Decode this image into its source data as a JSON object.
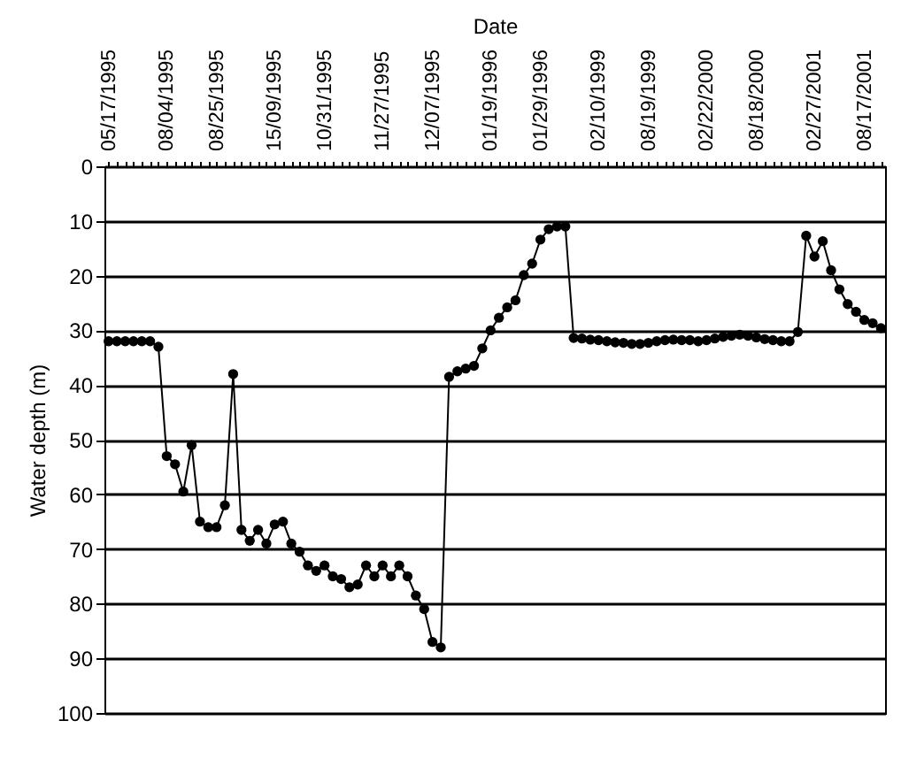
{
  "chart_data": {
    "type": "line",
    "xlabel": "Date",
    "ylabel": "Water depth (m)",
    "categories": [
      "05/17/1995",
      null,
      null,
      null,
      null,
      null,
      null,
      "08/04/1995",
      null,
      null,
      null,
      null,
      null,
      "08/25/1995",
      null,
      null,
      null,
      null,
      null,
      null,
      "15/09/1995",
      null,
      null,
      null,
      null,
      null,
      "10/31/1995",
      null,
      null,
      null,
      null,
      null,
      null,
      "11/27/1995",
      null,
      null,
      null,
      null,
      null,
      "12/07/1995",
      null,
      null,
      null,
      null,
      null,
      null,
      "01/19/1996",
      null,
      null,
      null,
      null,
      null,
      "01/29/1996",
      null,
      null,
      null,
      null,
      null,
      null,
      "02/10/1999",
      null,
      null,
      null,
      null,
      null,
      "08/19/1999",
      null,
      null,
      null,
      null,
      null,
      null,
      "02/22/2000",
      null,
      null,
      null,
      null,
      null,
      "08/18/2000",
      null,
      null,
      null,
      null,
      null,
      null,
      "02/27/2001",
      null,
      null,
      null,
      null,
      null,
      "08/17/2001",
      null,
      null
    ],
    "series": [
      {
        "color": "#000000",
        "values": [
          32,
          32,
          32,
          32,
          32,
          32,
          33,
          53,
          54.5,
          59.5,
          51,
          65,
          66,
          66,
          62,
          38,
          66.5,
          68.5,
          66.5,
          69,
          65.5,
          65,
          69,
          70.5,
          73,
          74,
          73,
          75,
          75.5,
          77,
          76.5,
          73,
          75,
          73,
          75,
          73,
          75,
          78.5,
          81,
          87,
          88,
          38.5,
          37.5,
          37,
          36.5,
          33.3,
          30,
          27.7,
          25.8,
          24.5,
          19.9,
          17.8,
          13.4,
          11.5,
          11,
          11,
          31.4,
          31.5,
          31.7,
          31.8,
          32,
          32.2,
          32.3,
          32.5,
          32.5,
          32.3,
          32,
          31.8,
          31.7,
          31.8,
          31.8,
          32,
          31.8,
          31.5,
          31.2,
          31,
          30.8,
          31,
          31.3,
          31.6,
          31.8,
          32,
          32,
          30.3,
          12.7,
          16.5,
          13.7,
          19,
          22.5,
          25.2,
          26.6,
          28.1,
          28.7,
          29.6
        ]
      }
    ],
    "ylim": [
      100,
      0
    ],
    "yticks": [
      0,
      10,
      20,
      30,
      40,
      50,
      60,
      70,
      80,
      90,
      100
    ],
    "grid": "y",
    "marker": "circle",
    "line_style": "solid"
  }
}
